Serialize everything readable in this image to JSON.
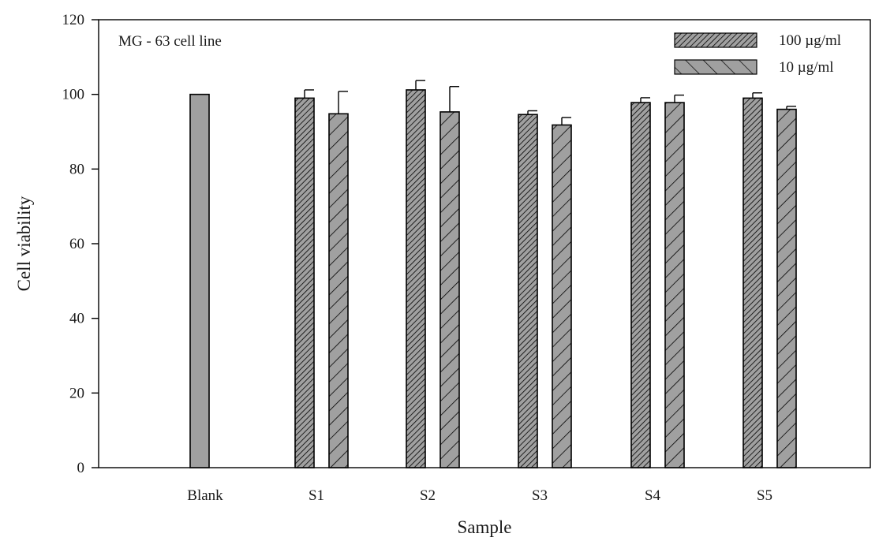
{
  "chart_data": {
    "type": "bar",
    "annotation": "MG - 63 cell line",
    "xlabel": "Sample",
    "ylabel": "Cell viability",
    "ylim": [
      0,
      120
    ],
    "yticks": [
      0,
      20,
      40,
      60,
      80,
      100,
      120
    ],
    "categories": [
      "Blank",
      "S1",
      "S2",
      "S3",
      "S4",
      "S5"
    ],
    "blank": {
      "category": "Blank",
      "value": 100,
      "color": "#a0a0a0"
    },
    "series": [
      {
        "name": "100 µg/ml",
        "pattern": "dense-hatch",
        "color": "#a0a0a0",
        "values": [
          null,
          99,
          101.2,
          94.6,
          97.8,
          99
        ],
        "errors": [
          null,
          2.2,
          2.5,
          1.0,
          1.3,
          1.4
        ]
      },
      {
        "name": "10 µg/ml",
        "pattern": "sparse-hatch",
        "color": "#a0a0a0",
        "values": [
          null,
          94.8,
          95.3,
          91.8,
          97.8,
          96.0
        ],
        "errors": [
          null,
          6.0,
          6.8,
          2.0,
          2.0,
          0.8
        ]
      }
    ],
    "legend": {
      "position": "top-right"
    },
    "grid": false
  }
}
